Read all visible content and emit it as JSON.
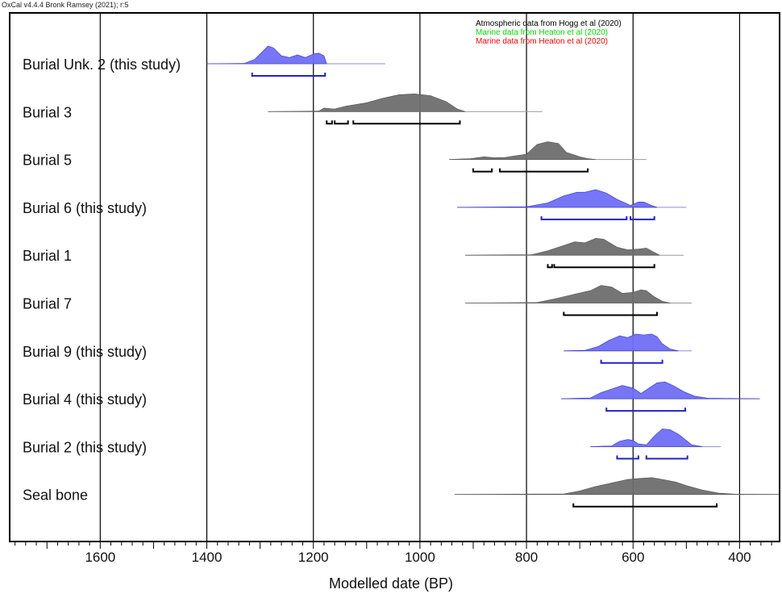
{
  "header": {
    "software": "OxCal v4.4.4 Bronk Ramsey (2021); r:5"
  },
  "legend": {
    "atmospheric": "Atmospheric data from Hogg et al (2020)",
    "marine_green": "Marine data from Heaton et al (2020)",
    "marine_red": "Marine data from Heaton et al (2020)"
  },
  "colors": {
    "this_study": "#6f6ff5",
    "this_study_stroke": "#3030e0",
    "other": "#6e6e6e",
    "bracket_this_study": "#2222cc",
    "bracket_other": "#000000",
    "atmospheric_text": "#000000",
    "marine_green_text": "#00dd00",
    "marine_red_text": "#ff0000"
  },
  "chart_data": {
    "type": "area",
    "xlabel": "Modelled date (BP)",
    "xlim": [
      1770,
      325
    ],
    "xticks": [
      1600,
      1400,
      1200,
      1000,
      800,
      600,
      400
    ],
    "reversed_x": true,
    "grid": true,
    "series": [
      {
        "name": "Burial Unk. 2 (this study)",
        "this_study": true,
        "prior": [
          1400,
          1065
        ],
        "density": [
          [
            1400,
            0
          ],
          [
            1330,
            0.02
          ],
          [
            1310,
            0.25
          ],
          [
            1295,
            0.7
          ],
          [
            1285,
            1
          ],
          [
            1275,
            0.9
          ],
          [
            1260,
            0.45
          ],
          [
            1245,
            0.35
          ],
          [
            1230,
            0.5
          ],
          [
            1215,
            0.35
          ],
          [
            1200,
            0.55
          ],
          [
            1190,
            0.6
          ],
          [
            1180,
            0.45
          ],
          [
            1175,
            0
          ]
        ],
        "ranges": [
          [
            1315,
            1178
          ]
        ]
      },
      {
        "name": "Burial 3",
        "this_study": false,
        "prior": [
          1285,
          770
        ],
        "density": [
          [
            1285,
            0
          ],
          [
            1190,
            0.03
          ],
          [
            1180,
            0.2
          ],
          [
            1160,
            0.15
          ],
          [
            1140,
            0.3
          ],
          [
            1100,
            0.5
          ],
          [
            1070,
            0.75
          ],
          [
            1040,
            0.95
          ],
          [
            1010,
            1
          ],
          [
            980,
            0.9
          ],
          [
            950,
            0.55
          ],
          [
            930,
            0.15
          ],
          [
            915,
            0
          ]
        ],
        "ranges": [
          [
            1175,
            1165
          ],
          [
            1160,
            1135
          ],
          [
            1125,
            925
          ]
        ]
      },
      {
        "name": "Burial 5",
        "this_study": false,
        "prior": [
          945,
          575
        ],
        "density": [
          [
            945,
            0
          ],
          [
            905,
            0.05
          ],
          [
            880,
            0.15
          ],
          [
            860,
            0.1
          ],
          [
            840,
            0.12
          ],
          [
            800,
            0.3
          ],
          [
            780,
            0.85
          ],
          [
            760,
            1
          ],
          [
            740,
            0.9
          ],
          [
            725,
            0.4
          ],
          [
            700,
            0.15
          ],
          [
            685,
            0.05
          ],
          [
            670,
            0
          ]
        ],
        "ranges": [
          [
            900,
            865
          ],
          [
            850,
            685
          ]
        ]
      },
      {
        "name": "Burial 6 (this study)",
        "this_study": true,
        "prior": [
          930,
          500
        ],
        "density": [
          [
            930,
            0
          ],
          [
            800,
            0.03
          ],
          [
            760,
            0.25
          ],
          [
            730,
            0.65
          ],
          [
            705,
            0.85
          ],
          [
            690,
            0.85
          ],
          [
            670,
            1
          ],
          [
            650,
            0.8
          ],
          [
            630,
            0.45
          ],
          [
            615,
            0.25
          ],
          [
            605,
            0.1
          ],
          [
            590,
            0.3
          ],
          [
            580,
            0.3
          ],
          [
            565,
            0.1
          ],
          [
            555,
            0
          ]
        ],
        "ranges": [
          [
            772,
            612
          ],
          [
            605,
            560
          ]
        ]
      },
      {
        "name": "Burial 1",
        "this_study": false,
        "prior": [
          915,
          505
        ],
        "density": [
          [
            915,
            0
          ],
          [
            790,
            0.03
          ],
          [
            760,
            0.25
          ],
          [
            730,
            0.55
          ],
          [
            710,
            0.75
          ],
          [
            690,
            0.7
          ],
          [
            670,
            0.95
          ],
          [
            655,
            0.9
          ],
          [
            630,
            0.45
          ],
          [
            610,
            0.3
          ],
          [
            590,
            0.35
          ],
          [
            575,
            0.4
          ],
          [
            560,
            0.15
          ],
          [
            550,
            0
          ]
        ],
        "ranges": [
          [
            760,
            752
          ],
          [
            748,
            560
          ]
        ]
      },
      {
        "name": "Burial 7",
        "this_study": false,
        "prior": [
          915,
          490
        ],
        "density": [
          [
            915,
            0
          ],
          [
            780,
            0.03
          ],
          [
            745,
            0.25
          ],
          [
            710,
            0.5
          ],
          [
            680,
            0.7
          ],
          [
            660,
            1
          ],
          [
            640,
            0.9
          ],
          [
            620,
            0.55
          ],
          [
            600,
            0.6
          ],
          [
            585,
            0.75
          ],
          [
            575,
            0.7
          ],
          [
            560,
            0.35
          ],
          [
            545,
            0.1
          ],
          [
            530,
            0
          ]
        ],
        "ranges": [
          [
            730,
            555
          ]
        ]
      },
      {
        "name": "Burial 9 (this study)",
        "this_study": true,
        "prior": [
          730,
          490
        ],
        "density": [
          [
            730,
            0
          ],
          [
            690,
            0.03
          ],
          [
            665,
            0.25
          ],
          [
            645,
            0.6
          ],
          [
            625,
            0.85
          ],
          [
            610,
            0.75
          ],
          [
            595,
            0.95
          ],
          [
            580,
            0.9
          ],
          [
            565,
            0.95
          ],
          [
            555,
            0.8
          ],
          [
            545,
            0.4
          ],
          [
            530,
            0.1
          ],
          [
            515,
            0
          ]
        ],
        "ranges": [
          [
            660,
            545
          ]
        ]
      },
      {
        "name": "Burial 4 (this study)",
        "this_study": true,
        "prior": [
          735,
          362
        ],
        "density": [
          [
            735,
            0
          ],
          [
            680,
            0.05
          ],
          [
            660,
            0.35
          ],
          [
            640,
            0.55
          ],
          [
            620,
            0.75
          ],
          [
            600,
            0.6
          ],
          [
            585,
            0.3
          ],
          [
            570,
            0.6
          ],
          [
            555,
            0.9
          ],
          [
            540,
            0.95
          ],
          [
            525,
            0.75
          ],
          [
            505,
            0.4
          ],
          [
            485,
            0.15
          ],
          [
            460,
            0.03
          ],
          [
            362,
            0
          ]
        ],
        "ranges": [
          [
            650,
            502
          ]
        ]
      },
      {
        "name": "Burial 2 (this study)",
        "this_study": true,
        "prior": [
          680,
          435
        ],
        "density": [
          [
            680,
            0
          ],
          [
            640,
            0.04
          ],
          [
            625,
            0.3
          ],
          [
            610,
            0.4
          ],
          [
            600,
            0.35
          ],
          [
            590,
            0.15
          ],
          [
            575,
            0.1
          ],
          [
            560,
            0.6
          ],
          [
            545,
            1
          ],
          [
            530,
            0.95
          ],
          [
            515,
            0.7
          ],
          [
            500,
            0.35
          ],
          [
            490,
            0.1
          ],
          [
            470,
            0
          ]
        ],
        "ranges": [
          [
            630,
            590
          ],
          [
            575,
            498
          ]
        ]
      },
      {
        "name": "Seal bone",
        "this_study": false,
        "prior": [
          935,
          325
        ],
        "density": [
          [
            935,
            0
          ],
          [
            730,
            0.03
          ],
          [
            700,
            0.2
          ],
          [
            670,
            0.45
          ],
          [
            640,
            0.65
          ],
          [
            610,
            0.85
          ],
          [
            590,
            0.9
          ],
          [
            565,
            0.95
          ],
          [
            545,
            0.85
          ],
          [
            520,
            0.7
          ],
          [
            500,
            0.5
          ],
          [
            470,
            0.25
          ],
          [
            440,
            0.08
          ],
          [
            410,
            0.02
          ],
          [
            325,
            0
          ]
        ],
        "ranges": [
          [
            712,
            443
          ]
        ]
      }
    ]
  }
}
